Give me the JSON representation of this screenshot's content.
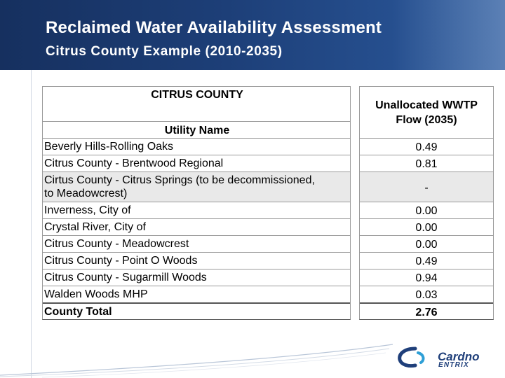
{
  "header": {
    "title": "Reclaimed Water Availability Assessment",
    "subtitle": "Citrus County Example (2010-2035)"
  },
  "table": {
    "group_header": "CITRUS COUNTY",
    "name_header": "Utility Name",
    "value_header_line1": "Unallocated WWTP",
    "value_header_line2": "Flow (2035)",
    "rows": [
      {
        "name": "Beverly Hills-Rolling Oaks",
        "value": "0.49"
      },
      {
        "name": "Citrus County - Brentwood Regional",
        "value": "0.81"
      },
      {
        "name_line1": "Cirtus County - Citrus Springs (to be decommissioned,",
        "name_line2": "to Meadowcrest)",
        "value": "-"
      },
      {
        "name": "Inverness, City of",
        "value": "0.00"
      },
      {
        "name": "Crystal River, City of",
        "value": "0.00"
      },
      {
        "name": "Citrus County - Meadowcrest",
        "value": "0.00"
      },
      {
        "name": "Citrus County - Point O Woods",
        "value": "0.49"
      },
      {
        "name": "Citrus County - Sugarmill Woods",
        "value": "0.94"
      },
      {
        "name": "Walden Woods MHP",
        "value": "0.03"
      }
    ],
    "total_label": "County Total",
    "total_value": "2.76"
  },
  "logo": {
    "name": "Cardno",
    "sub": "ENTRIX",
    "colors": {
      "primary": "#1f3f7a",
      "accent": "#2e9fd6"
    }
  }
}
